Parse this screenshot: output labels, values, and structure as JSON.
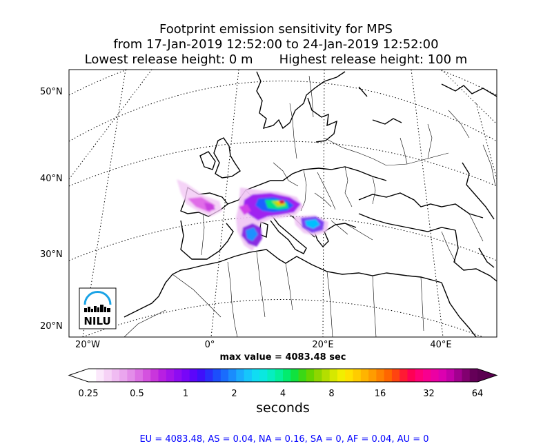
{
  "chart_data": {
    "type": "heatmap",
    "title_line1": "Footprint emission sensitivity for MPS",
    "title_line2": "from 17-Jan-2019 12:52:00 to 24-Jan-2019 12:52:00",
    "title_line3_left": "Lowest release height: 0 m",
    "title_line3_right": "Highest release height: 100 m",
    "lat_labels": [
      "50°N",
      "40°N",
      "30°N",
      "20°N"
    ],
    "lon_labels": [
      "20°W",
      "0°",
      "20°E",
      "40°E"
    ],
    "max_value_text": "max value = 4083.48 sec",
    "colorbar": {
      "ticks": [
        "0.25",
        "0.5",
        "1",
        "2",
        "4",
        "8",
        "16",
        "32",
        "64"
      ],
      "label": "seconds",
      "scale": "log",
      "extend": "both"
    },
    "logo_text": "NILU",
    "footer": "EU = 4083.48,  AS = 0.04,  NA = 0.16,  SA = 0,  AF = 0.04,  AU = 0"
  }
}
